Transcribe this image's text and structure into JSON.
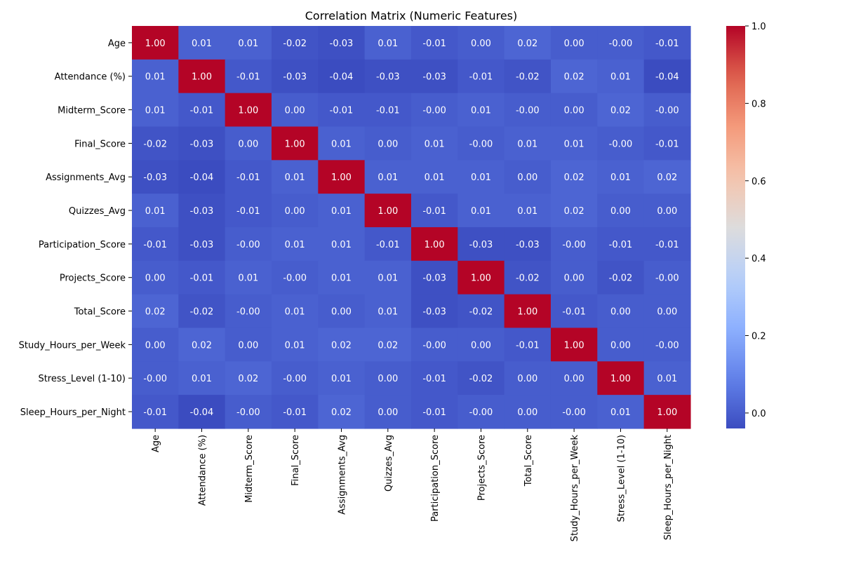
{
  "chart_data": {
    "type": "heatmap",
    "title": "Correlation Matrix (Numeric Features)",
    "labels": [
      "Age",
      "Attendance (%)",
      "Midterm_Score",
      "Final_Score",
      "Assignments_Avg",
      "Quizzes_Avg",
      "Participation_Score",
      "Projects_Score",
      "Total_Score",
      "Study_Hours_per_Week",
      "Stress_Level (1-10)",
      "Sleep_Hours_per_Night"
    ],
    "matrix": [
      [
        1.0,
        0.01,
        0.01,
        -0.02,
        -0.03,
        0.01,
        -0.01,
        0.0,
        0.02,
        0.0,
        -0.0,
        -0.01
      ],
      [
        0.01,
        1.0,
        -0.01,
        -0.03,
        -0.04,
        -0.03,
        -0.03,
        -0.01,
        -0.02,
        0.02,
        0.01,
        -0.04
      ],
      [
        0.01,
        -0.01,
        1.0,
        0.0,
        -0.01,
        -0.01,
        -0.0,
        0.01,
        -0.0,
        0.0,
        0.02,
        -0.0
      ],
      [
        -0.02,
        -0.03,
        0.0,
        1.0,
        0.01,
        0.0,
        0.01,
        -0.0,
        0.01,
        0.01,
        -0.0,
        -0.01
      ],
      [
        -0.03,
        -0.04,
        -0.01,
        0.01,
        1.0,
        0.01,
        0.01,
        0.01,
        0.0,
        0.02,
        0.01,
        0.02
      ],
      [
        0.01,
        -0.03,
        -0.01,
        0.0,
        0.01,
        1.0,
        -0.01,
        0.01,
        0.01,
        0.02,
        0.0,
        0.0
      ],
      [
        -0.01,
        -0.03,
        -0.0,
        0.01,
        0.01,
        -0.01,
        1.0,
        -0.03,
        -0.03,
        -0.0,
        -0.01,
        -0.01
      ],
      [
        0.0,
        -0.01,
        0.01,
        -0.0,
        0.01,
        0.01,
        -0.03,
        1.0,
        -0.02,
        0.0,
        -0.02,
        -0.0
      ],
      [
        0.02,
        -0.02,
        -0.0,
        0.01,
        0.0,
        0.01,
        -0.03,
        -0.02,
        1.0,
        -0.01,
        0.0,
        0.0
      ],
      [
        0.0,
        0.02,
        0.0,
        0.01,
        0.02,
        0.02,
        -0.0,
        0.0,
        -0.01,
        1.0,
        0.0,
        -0.0
      ],
      [
        -0.0,
        0.01,
        0.02,
        -0.0,
        0.01,
        0.0,
        -0.01,
        -0.02,
        0.0,
        0.0,
        1.0,
        0.01
      ],
      [
        -0.01,
        -0.04,
        -0.0,
        -0.01,
        0.02,
        0.0,
        -0.01,
        -0.0,
        0.0,
        -0.0,
        0.01,
        1.0
      ]
    ],
    "display": [
      [
        "1.00",
        "0.01",
        "0.01",
        "-0.02",
        "-0.03",
        "0.01",
        "-0.01",
        "0.00",
        "0.02",
        "0.00",
        "-0.00",
        "-0.01"
      ],
      [
        "0.01",
        "1.00",
        "-0.01",
        "-0.03",
        "-0.04",
        "-0.03",
        "-0.03",
        "-0.01",
        "-0.02",
        "0.02",
        "0.01",
        "-0.04"
      ],
      [
        "0.01",
        "-0.01",
        "1.00",
        "0.00",
        "-0.01",
        "-0.01",
        "-0.00",
        "0.01",
        "-0.00",
        "0.00",
        "0.02",
        "-0.00"
      ],
      [
        "-0.02",
        "-0.03",
        "0.00",
        "1.00",
        "0.01",
        "0.00",
        "0.01",
        "-0.00",
        "0.01",
        "0.01",
        "-0.00",
        "-0.01"
      ],
      [
        "-0.03",
        "-0.04",
        "-0.01",
        "0.01",
        "1.00",
        "0.01",
        "0.01",
        "0.01",
        "0.00",
        "0.02",
        "0.01",
        "0.02"
      ],
      [
        "0.01",
        "-0.03",
        "-0.01",
        "0.00",
        "0.01",
        "1.00",
        "-0.01",
        "0.01",
        "0.01",
        "0.02",
        "0.00",
        "0.00"
      ],
      [
        "-0.01",
        "-0.03",
        "-0.00",
        "0.01",
        "0.01",
        "-0.01",
        "1.00",
        "-0.03",
        "-0.03",
        "-0.00",
        "-0.01",
        "-0.01"
      ],
      [
        "0.00",
        "-0.01",
        "0.01",
        "-0.00",
        "0.01",
        "0.01",
        "-0.03",
        "1.00",
        "-0.02",
        "0.00",
        "-0.02",
        "-0.00"
      ],
      [
        "0.02",
        "-0.02",
        "-0.00",
        "0.01",
        "0.00",
        "0.01",
        "-0.03",
        "-0.02",
        "1.00",
        "-0.01",
        "0.00",
        "0.00"
      ],
      [
        "0.00",
        "0.02",
        "0.00",
        "0.01",
        "0.02",
        "0.02",
        "-0.00",
        "0.00",
        "-0.01",
        "1.00",
        "0.00",
        "-0.00"
      ],
      [
        "-0.00",
        "0.01",
        "0.02",
        "-0.00",
        "0.01",
        "0.00",
        "-0.01",
        "-0.02",
        "0.00",
        "0.00",
        "1.00",
        "0.01"
      ],
      [
        "-0.01",
        "-0.04",
        "-0.00",
        "-0.01",
        "0.02",
        "0.00",
        "-0.01",
        "-0.00",
        "0.00",
        "-0.00",
        "0.01",
        "1.00"
      ]
    ],
    "colorbar": {
      "colormap": "coolwarm",
      "range": [
        -0.04,
        1.0
      ],
      "ticks": [
        0.0,
        0.2,
        0.4,
        0.6,
        0.8,
        1.0
      ],
      "tick_labels": [
        "0.0",
        "0.2",
        "0.4",
        "0.6",
        "0.8",
        "1.0"
      ]
    },
    "annotations": true,
    "grid": false
  }
}
